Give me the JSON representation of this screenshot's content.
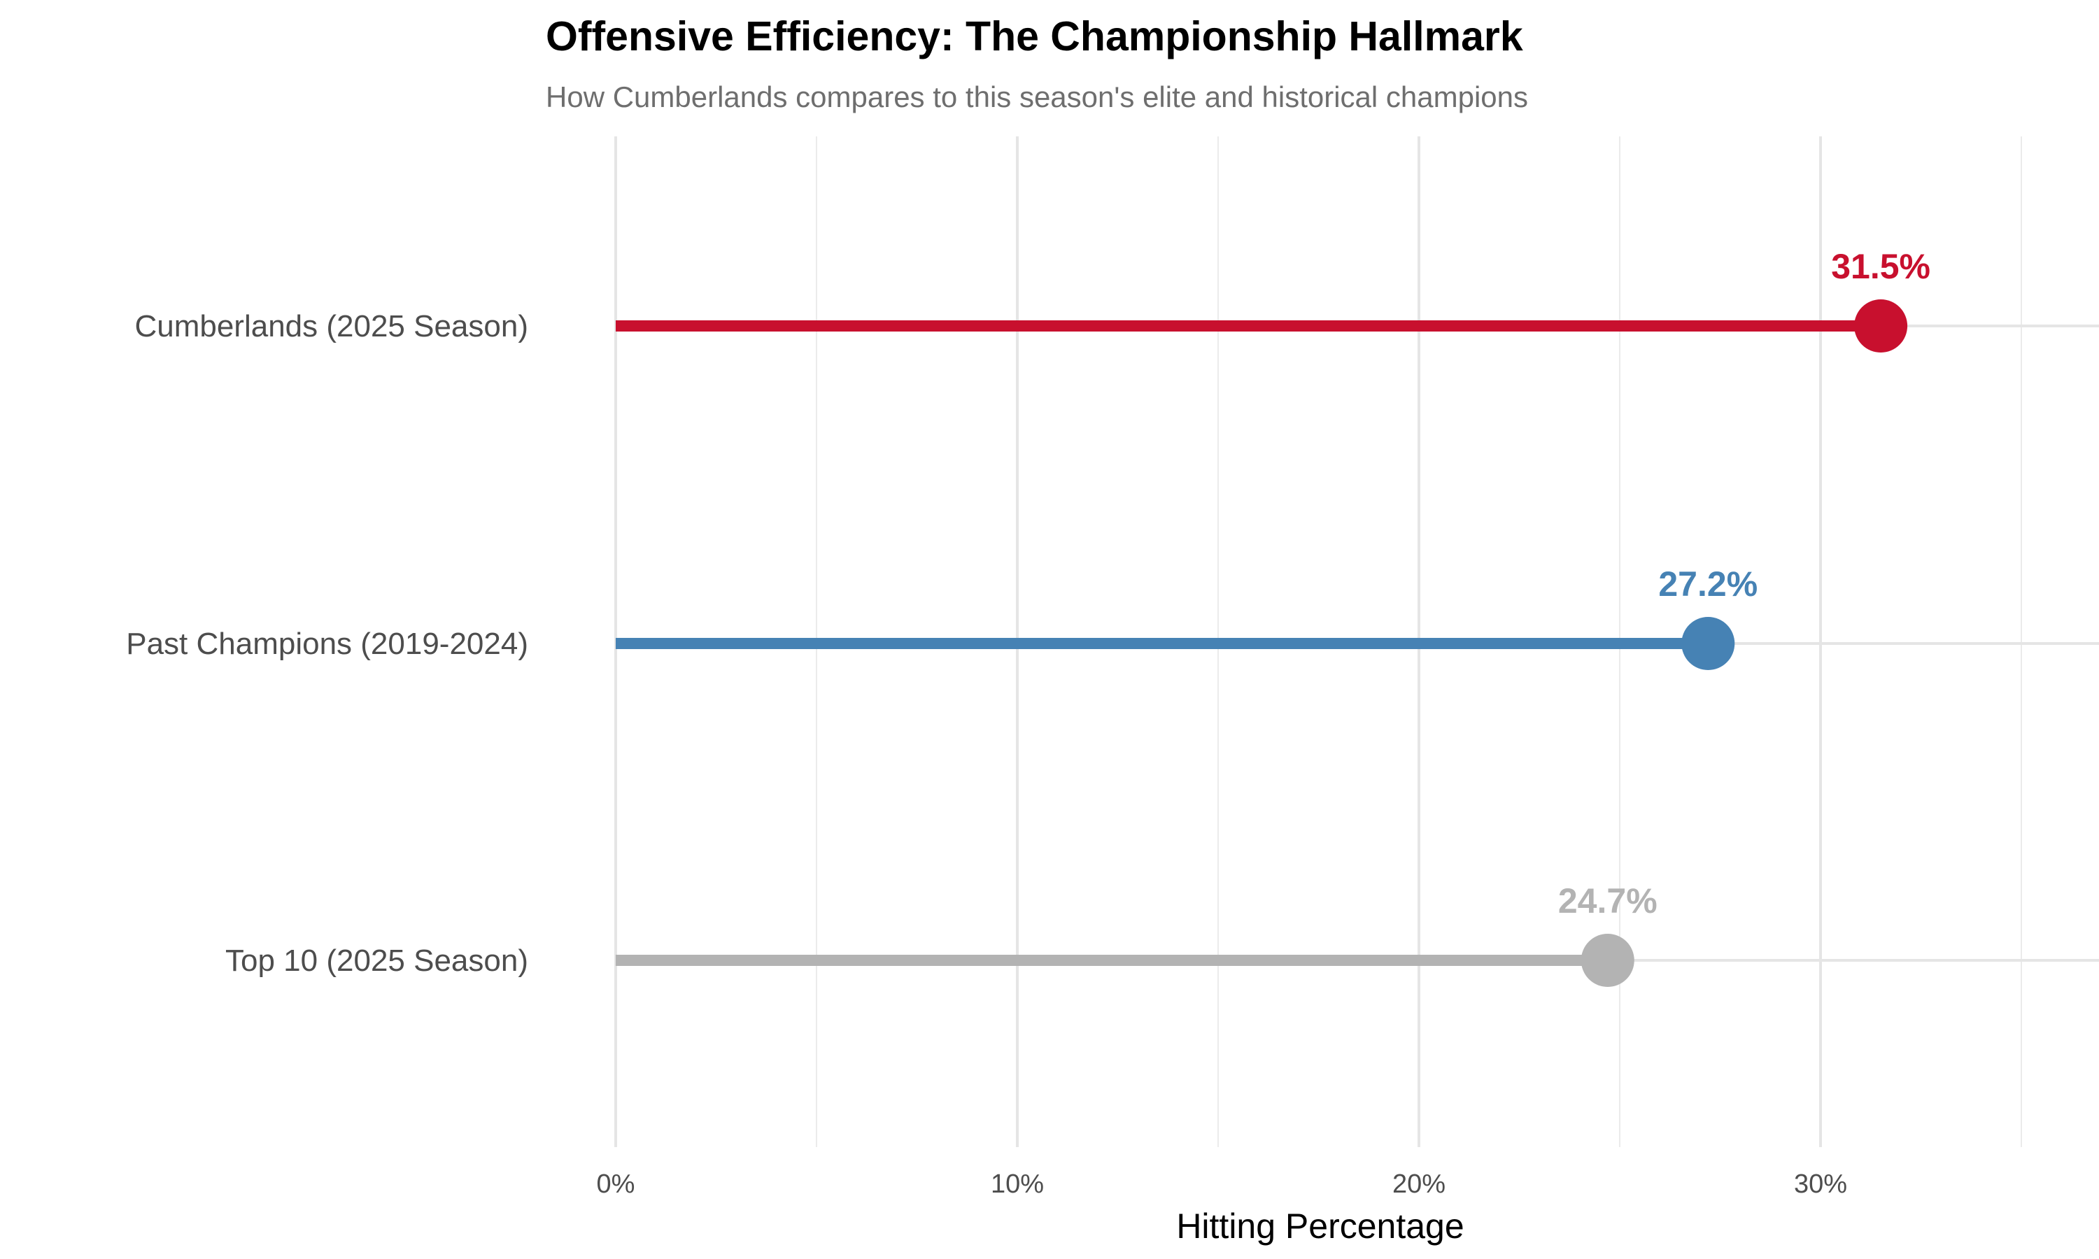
{
  "chart_data": {
    "type": "lollipop",
    "title": "Offensive Efficiency: The Championship Hallmark",
    "subtitle": "How Cumberlands compares to this season's elite and historical champions",
    "xlabel": "Hitting Percentage",
    "ylabel": "",
    "xlim": [
      0,
      0.36
    ],
    "x_ticks": [
      0,
      0.1,
      0.2,
      0.3
    ],
    "x_tick_labels": [
      "0%",
      "10%",
      "20%",
      "30%"
    ],
    "grid": true,
    "legend": "none",
    "categories": [
      "Cumberlands (2025 Season)",
      "Past Champions (2019-2024)",
      "Top 10 (2025 Season)"
    ],
    "values": [
      0.315,
      0.272,
      0.247
    ],
    "value_labels": [
      "31.5%",
      "27.2%",
      "24.7%"
    ],
    "colors": [
      "#c8102e",
      "#4682b4",
      "#b3b3b3"
    ]
  }
}
